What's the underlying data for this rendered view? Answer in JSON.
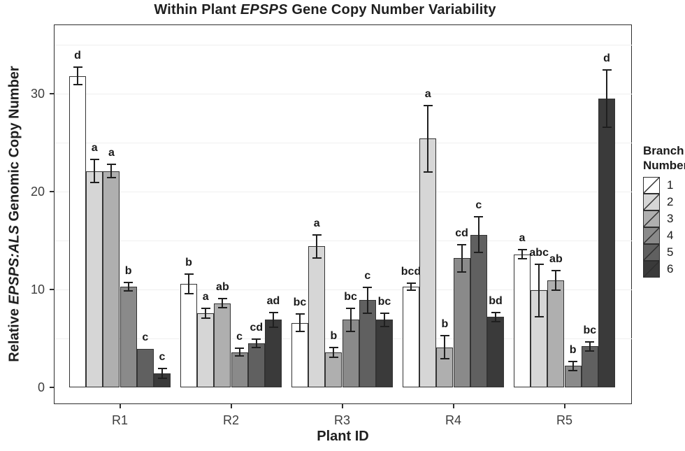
{
  "title": {
    "prefix": "Within Plant ",
    "italic": "EPSPS",
    "suffix": " Gene Copy Number Variability"
  },
  "y_axis": {
    "title_prefix": "Relative ",
    "title_italic": "EPSPS:ALS",
    "title_suffix": " Genomic Copy Number",
    "ticks": [
      0,
      10,
      20,
      30
    ]
  },
  "x_axis": {
    "title": "Plant ID"
  },
  "legend": {
    "title_line1": "Branch",
    "title_line2": "Number",
    "entries": [
      {
        "label": "1",
        "color": "#FFFFFF"
      },
      {
        "label": "2",
        "color": "#D6D6D6"
      },
      {
        "label": "3",
        "color": "#AFAFAF"
      },
      {
        "label": "4",
        "color": "#8A8A8A"
      },
      {
        "label": "5",
        "color": "#606060"
      },
      {
        "label": "6",
        "color": "#3A3A3A"
      }
    ]
  },
  "chart_data": {
    "type": "bar",
    "title": "Within Plant EPSPS Gene Copy Number Variability",
    "xlabel": "Plant ID",
    "ylabel": "Relative EPSPS:ALS Genomic Copy Number",
    "categories": [
      "R1",
      "R2",
      "R3",
      "R4",
      "R5"
    ],
    "ylim": [
      0,
      35
    ],
    "ytick_interval": 10,
    "grid": "faint horizontal lines every 5 units",
    "legend_position": "right",
    "bar_outline_color": "#333333",
    "error_bar_color": "#1f1f1f",
    "series": [
      {
        "name": "1",
        "color": "#FFFFFF",
        "values": [
          31.8,
          10.6,
          6.6,
          10.3,
          13.6
        ],
        "errors": [
          0.9,
          1.0,
          0.9,
          0.35,
          0.45
        ],
        "sig_letters": [
          "d",
          "b",
          "bc",
          "bcd",
          "a"
        ]
      },
      {
        "name": "2",
        "color": "#D6D6D6",
        "values": [
          22.1,
          7.6,
          14.4,
          25.4,
          9.9
        ],
        "errors": [
          1.2,
          0.5,
          1.2,
          3.4,
          2.7
        ],
        "sig_letters": [
          "a",
          "a",
          "a",
          "a",
          "abc"
        ]
      },
      {
        "name": "3",
        "color": "#AFAFAF",
        "values": [
          22.1,
          8.6,
          3.6,
          4.1,
          10.9
        ],
        "errors": [
          0.7,
          0.45,
          0.5,
          1.2,
          1.0
        ],
        "sig_letters": [
          "a",
          "ab",
          "b",
          "b",
          "ab"
        ]
      },
      {
        "name": "4",
        "color": "#8A8A8A",
        "values": [
          10.3,
          3.6,
          6.9,
          13.2,
          2.2
        ],
        "errors": [
          0.45,
          0.4,
          1.2,
          1.4,
          0.45
        ],
        "sig_letters": [
          "b",
          "c",
          "bc",
          "cd",
          "b"
        ]
      },
      {
        "name": "5",
        "color": "#606060",
        "values": [
          3.9,
          4.5,
          8.9,
          15.6,
          4.2
        ],
        "errors": [
          0,
          0.4,
          1.3,
          1.8,
          0.45
        ],
        "sig_letters": [
          "c",
          "cd",
          "c",
          "c",
          "bc"
        ]
      },
      {
        "name": "6",
        "color": "#3A3A3A",
        "values": [
          1.4,
          6.9,
          6.9,
          7.2,
          29.5
        ],
        "errors": [
          0.5,
          0.75,
          0.7,
          0.45,
          2.9
        ],
        "sig_letters": [
          "c",
          "ad",
          "bc",
          "bd",
          "d"
        ]
      }
    ]
  }
}
